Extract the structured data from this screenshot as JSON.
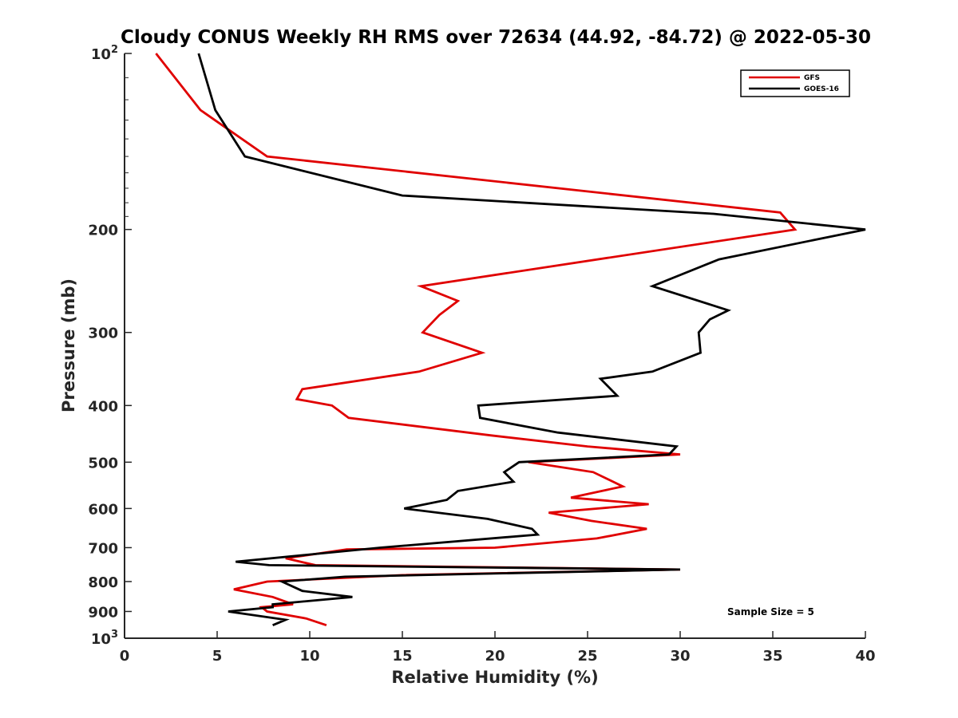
{
  "chart_data": {
    "type": "line",
    "title": "Cloudy CONUS Weekly RH RMS over 72634 (44.92, -84.72) @ 2022-05-30",
    "xlabel": "Relative Humidity (%)",
    "ylabel": "Pressure (mb)",
    "xlim": [
      0,
      40
    ],
    "ylim": [
      100,
      1000
    ],
    "y_scale": "log",
    "y_reversed": true,
    "x_ticks": [
      0,
      5,
      10,
      15,
      20,
      25,
      30,
      35,
      40
    ],
    "y_ticks": [
      {
        "value": 100,
        "label": "10",
        "sup": "2"
      },
      {
        "value": 200,
        "label": "200",
        "sup": ""
      },
      {
        "value": 300,
        "label": "300",
        "sup": ""
      },
      {
        "value": 400,
        "label": "400",
        "sup": ""
      },
      {
        "value": 500,
        "label": "500",
        "sup": ""
      },
      {
        "value": 600,
        "label": "600",
        "sup": ""
      },
      {
        "value": 700,
        "label": "700",
        "sup": ""
      },
      {
        "value": 800,
        "label": "800",
        "sup": ""
      },
      {
        "value": 900,
        "label": "900",
        "sup": ""
      },
      {
        "value": 1000,
        "label": "10",
        "sup": "3"
      }
    ],
    "grid": false,
    "legend_position": "top-right",
    "annotation": "Sample Size = 5",
    "series": [
      {
        "name": "GFS",
        "color": "#e00000",
        "points": [
          [
            1.7,
            100
          ],
          [
            4.1,
            125
          ],
          [
            7.7,
            150
          ],
          [
            35.4,
            187
          ],
          [
            36.2,
            200
          ],
          [
            16.0,
            250
          ],
          [
            18.0,
            265
          ],
          [
            17.0,
            280
          ],
          [
            16.1,
            300
          ],
          [
            19.3,
            325
          ],
          [
            15.9,
            350
          ],
          [
            9.6,
            375
          ],
          [
            9.3,
            390
          ],
          [
            11.2,
            400
          ],
          [
            12.1,
            420
          ],
          [
            19.8,
            450
          ],
          [
            25.0,
            470
          ],
          [
            30.0,
            485
          ],
          [
            21.8,
            500
          ],
          [
            25.3,
            520
          ],
          [
            26.9,
            550
          ],
          [
            24.1,
            575
          ],
          [
            28.3,
            590
          ],
          [
            22.9,
            610
          ],
          [
            25.2,
            630
          ],
          [
            28.2,
            650
          ],
          [
            25.5,
            675
          ],
          [
            20.0,
            700
          ],
          [
            12.0,
            705
          ],
          [
            8.7,
            730
          ],
          [
            10.3,
            750
          ],
          [
            30.0,
            763
          ],
          [
            15.0,
            780
          ],
          [
            7.7,
            800
          ],
          [
            5.9,
            825
          ],
          [
            8.0,
            850
          ],
          [
            9.1,
            875
          ],
          [
            7.4,
            885
          ],
          [
            7.7,
            900
          ],
          [
            9.8,
            925
          ],
          [
            10.9,
            950
          ]
        ]
      },
      {
        "name": "GOES-16",
        "color": "#000000",
        "points": [
          [
            4.0,
            100
          ],
          [
            4.9,
            125
          ],
          [
            6.5,
            150
          ],
          [
            15.0,
            175
          ],
          [
            31.8,
            188
          ],
          [
            40.0,
            200
          ],
          [
            32.1,
            225
          ],
          [
            28.5,
            250
          ],
          [
            32.6,
            275
          ],
          [
            31.6,
            285
          ],
          [
            31.0,
            300
          ],
          [
            31.1,
            325
          ],
          [
            28.5,
            350
          ],
          [
            25.7,
            360
          ],
          [
            26.6,
            385
          ],
          [
            19.1,
            400
          ],
          [
            19.2,
            420
          ],
          [
            23.4,
            445
          ],
          [
            29.8,
            470
          ],
          [
            29.4,
            485
          ],
          [
            21.3,
            500
          ],
          [
            20.5,
            520
          ],
          [
            21.0,
            540
          ],
          [
            18.0,
            560
          ],
          [
            17.4,
            580
          ],
          [
            15.1,
            600
          ],
          [
            19.6,
            625
          ],
          [
            22.0,
            650
          ],
          [
            22.3,
            665
          ],
          [
            13.8,
            700
          ],
          [
            6.0,
            740
          ],
          [
            7.8,
            750
          ],
          [
            30.0,
            763
          ],
          [
            11.9,
            785
          ],
          [
            8.5,
            800
          ],
          [
            9.6,
            830
          ],
          [
            12.3,
            850
          ],
          [
            8.0,
            875
          ],
          [
            8.0,
            885
          ],
          [
            5.6,
            900
          ],
          [
            8.7,
            930
          ],
          [
            8.0,
            950
          ]
        ]
      }
    ]
  }
}
